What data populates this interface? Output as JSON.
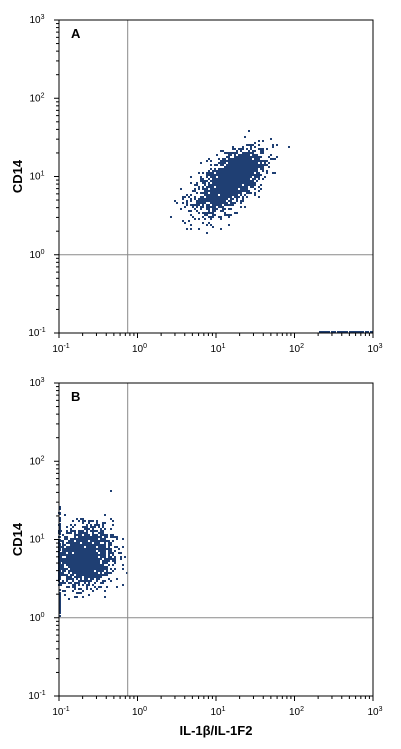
{
  "colors": {
    "dots": "#1f3f73",
    "frame": "#000000",
    "gate": "#8a8a8a"
  },
  "chart_data": [
    {
      "type": "scatter",
      "panel_label": "A",
      "xlabel": "",
      "ylabel": "CD14",
      "xscale": "log",
      "yscale": "log",
      "xlim": [
        0.1,
        1000
      ],
      "ylim": [
        0.1,
        1000
      ],
      "x_ticks": [
        {
          "base": "10",
          "exp": "-1"
        },
        {
          "base": "10",
          "exp": "0"
        },
        {
          "base": "10",
          "exp": "1"
        },
        {
          "base": "10",
          "exp": "2"
        },
        {
          "base": "10",
          "exp": "3"
        }
      ],
      "y_ticks": [
        {
          "base": "10",
          "exp": "-1"
        },
        {
          "base": "10",
          "exp": "0"
        },
        {
          "base": "10",
          "exp": "1"
        },
        {
          "base": "10",
          "exp": "2"
        },
        {
          "base": "10",
          "exp": "3"
        }
      ],
      "quadrant_gate": {
        "x": 0.75,
        "y": 1.0
      },
      "clusters": [
        {
          "cx": 14,
          "cy": 8,
          "sx_dec": 0.22,
          "sy_dec": 0.2,
          "rho": 0.6,
          "n": 1400
        },
        {
          "cx": 20,
          "cy": 12,
          "sx_dec": 0.13,
          "sy_dec": 0.12,
          "rho": 0.4,
          "n": 700
        }
      ],
      "edge_events": {
        "x_range": [
          200,
          1000
        ],
        "y": 0.1,
        "n": 60
      }
    },
    {
      "type": "scatter",
      "panel_label": "B",
      "xlabel": "IL-1β/IL-1F2",
      "ylabel": "CD14",
      "xscale": "log",
      "yscale": "log",
      "xlim": [
        0.1,
        1000
      ],
      "ylim": [
        0.1,
        1000
      ],
      "x_ticks": [
        {
          "base": "10",
          "exp": "-1"
        },
        {
          "base": "10",
          "exp": "0"
        },
        {
          "base": "10",
          "exp": "1"
        },
        {
          "base": "10",
          "exp": "2"
        },
        {
          "base": "10",
          "exp": "3"
        }
      ],
      "y_ticks": [
        {
          "base": "10",
          "exp": "-1"
        },
        {
          "base": "10",
          "exp": "0"
        },
        {
          "base": "10",
          "exp": "1"
        },
        {
          "base": "10",
          "exp": "2"
        },
        {
          "base": "10",
          "exp": "3"
        }
      ],
      "quadrant_gate": {
        "x": 0.75,
        "y": 1.0
      },
      "clusters": [
        {
          "cx": 0.22,
          "cy": 6,
          "sx_dec": 0.17,
          "sy_dec": 0.19,
          "rho": 0.1,
          "n": 1600
        }
      ],
      "edge_events": {
        "x_range": [
          0.1,
          0.11
        ],
        "y_range": [
          1,
          25
        ],
        "n": 80
      }
    }
  ]
}
